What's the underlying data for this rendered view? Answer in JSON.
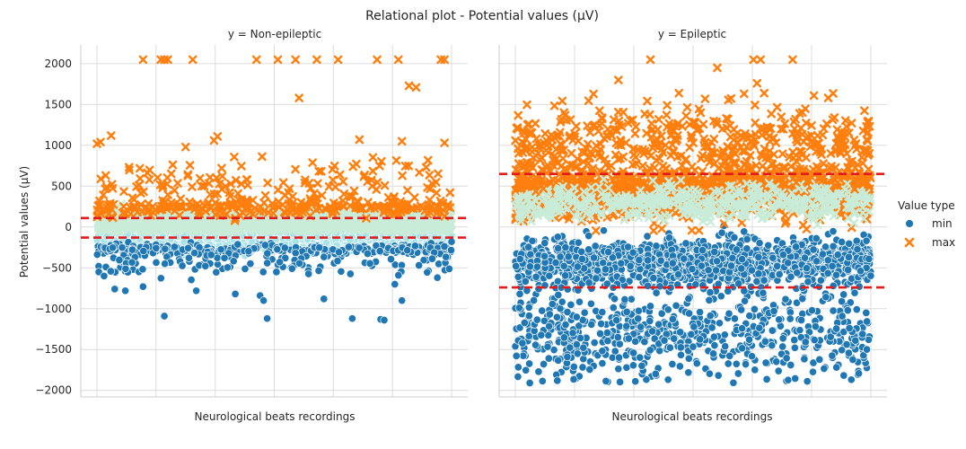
{
  "chart_data": {
    "type": "scatter",
    "title": "Relational plot - Potential values (µV)",
    "ylabel": "Potential values (µV)",
    "ylim": [
      -2080,
      2230
    ],
    "y_ticks": [
      2000,
      1500,
      1000,
      500,
      0,
      -500,
      -1000,
      -1500,
      -2000
    ],
    "grid": true,
    "legend": {
      "title": "Value type",
      "placement": "right",
      "entries": [
        {
          "name": "min",
          "marker": "circle",
          "color": "#1f77b4"
        },
        {
          "name": "max",
          "marker": "x",
          "color": "#ff7f0e"
        }
      ]
    },
    "panels": [
      {
        "title": "y = Non-epileptic",
        "xlabel": "Neurological beats recordings",
        "thresholds": [
          110,
          -130
        ],
        "threshold_color": "#e31a1c",
        "series": [
          {
            "name": "min",
            "bands": [
              {
                "center": -100,
                "spread": 150,
                "count": 1500,
                "color": "#a8e3e8"
              },
              {
                "center": -280,
                "spread": 70,
                "count": 280,
                "color": "#1f77b4"
              },
              {
                "center": -450,
                "spread": 170,
                "count": 110,
                "color": "#1f77b4"
              }
            ],
            "points": [
              [
                0.08,
                -780
              ],
              [
                0.19,
                -1090
              ],
              [
                0.13,
                -730
              ],
              [
                0.02,
                -600
              ],
              [
                0.05,
                -760
              ],
              [
                0.48,
                -1120
              ],
              [
                0.46,
                -840
              ],
              [
                0.47,
                -900
              ],
              [
                0.64,
                -880
              ],
              [
                0.72,
                -1120
              ],
              [
                0.8,
                -1130
              ],
              [
                0.81,
                -1140
              ],
              [
                0.86,
                -900
              ],
              [
                0.84,
                -700
              ],
              [
                0.85,
                -590
              ],
              [
                0.28,
                -780
              ],
              [
                0.39,
                -820
              ],
              [
                0.55,
                -510
              ],
              [
                0.96,
                -620
              ],
              [
                1.0,
                -180
              ]
            ]
          },
          {
            "name": "max",
            "bands": [
              {
                "center": 60,
                "spread": 140,
                "count": 1500,
                "color": "#c8ecd8"
              },
              {
                "center": 240,
                "spread": 110,
                "count": 250,
                "color": "#ff7f0e"
              },
              {
                "center": 550,
                "spread": 230,
                "count": 130,
                "color": "#ff7f0e"
              }
            ],
            "points": [
              [
                0.13,
                2050
              ],
              [
                0.18,
                2050
              ],
              [
                0.19,
                2050
              ],
              [
                0.2,
                2050
              ],
              [
                0.27,
                2050
              ],
              [
                0.45,
                2050
              ],
              [
                0.51,
                2050
              ],
              [
                0.56,
                2050
              ],
              [
                0.62,
                2050
              ],
              [
                0.68,
                2050
              ],
              [
                0.79,
                2050
              ],
              [
                0.85,
                2050
              ],
              [
                0.97,
                2050
              ],
              [
                0.98,
                2050
              ],
              [
                0.57,
                1580
              ],
              [
                0.88,
                1730
              ],
              [
                0.9,
                1710
              ],
              [
                0.0,
                1020
              ],
              [
                0.01,
                1040
              ],
              [
                0.04,
                1120
              ],
              [
                0.25,
                980
              ],
              [
                0.33,
                1060
              ],
              [
                0.34,
                1110
              ],
              [
                0.74,
                1070
              ],
              [
                0.86,
                1050
              ],
              [
                0.98,
                1030
              ]
            ]
          }
        ]
      },
      {
        "title": "y = Epileptic",
        "xlabel": "Neurological beats recordings",
        "thresholds": [
          650,
          -740
        ],
        "threshold_color": "#e31a1c",
        "series": [
          {
            "name": "min",
            "bands": [
              {
                "center": -430,
                "spread": 270,
                "count": 1300,
                "color": "#1f77b4"
              },
              {
                "center": -1300,
                "spread": 560,
                "count": 650,
                "color": "#1f77b4"
              }
            ],
            "points": []
          },
          {
            "name": "max",
            "bands": [
              {
                "center": 440,
                "spread": 330,
                "count": 1300,
                "color": "#ff7f0e"
              },
              {
                "center": 300,
                "spread": 200,
                "count": 500,
                "color": "#c8ecd8"
              },
              {
                "center": 1050,
                "spread": 420,
                "count": 420,
                "color": "#ff7f0e"
              }
            ],
            "points": [
              [
                0.38,
                2050
              ],
              [
                0.67,
                2050
              ],
              [
                0.69,
                2050
              ],
              [
                0.78,
                2050
              ],
              [
                0.68,
                1760
              ],
              [
                0.7,
                1640
              ],
              [
                0.29,
                1800
              ],
              [
                0.22,
                1630
              ],
              [
                0.46,
                1640
              ],
              [
                0.84,
                1610
              ]
            ]
          }
        ]
      }
    ]
  }
}
